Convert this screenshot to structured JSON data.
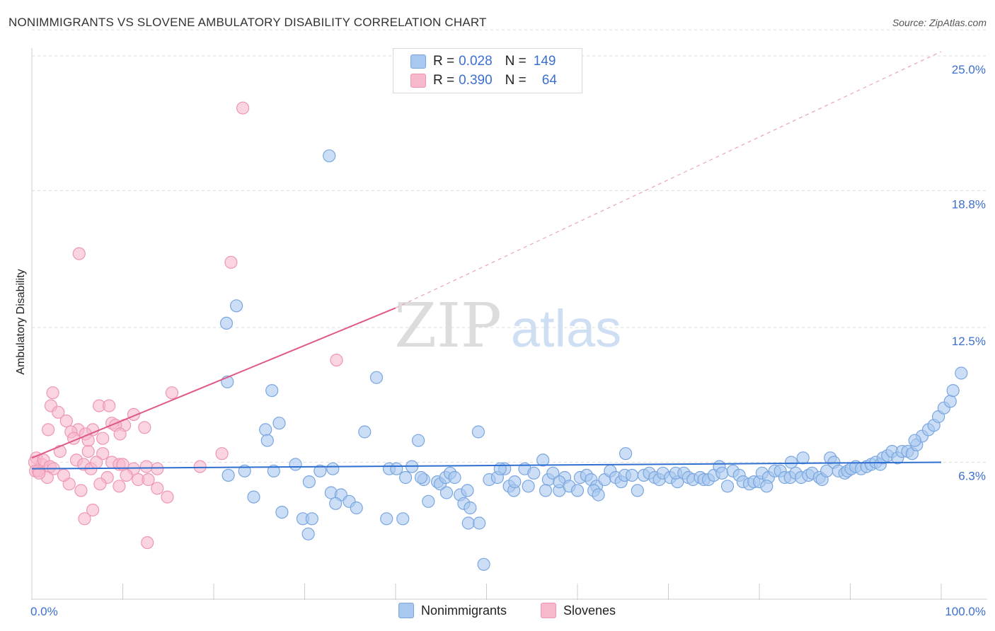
{
  "header": {
    "title": "NONIMMIGRANTS VS SLOVENE AMBULATORY DISABILITY CORRELATION CHART",
    "source": "Source: ZipAtlas.com"
  },
  "legend": {
    "rows": [
      {
        "r_label": "R =",
        "r_value": "0.028",
        "n_label": "N =",
        "n_value": "149"
      },
      {
        "r_label": "R =",
        "r_value": "0.390",
        "n_label": "N =",
        "n_value": "64"
      }
    ]
  },
  "colors": {
    "blue_fill": "#a9c8ef",
    "blue_stroke": "#7aa6e0",
    "blue_line": "#2f6fd0",
    "pink_fill": "#f6b8cb",
    "pink_stroke": "#ee97b2",
    "pink_line": "#e05a87",
    "tick_label": "#3c6fcf",
    "grid": "#dddddd"
  },
  "chart_data": {
    "type": "scatter",
    "title": "NONIMMIGRANTS VS SLOVENE AMBULATORY DISABILITY CORRELATION CHART",
    "ylabel": "Ambulatory Disability",
    "xlabel": "",
    "x_tick_labels": [
      "0.0%",
      "100.0%"
    ],
    "y_tick_labels": [
      "6.3%",
      "12.5%",
      "18.8%",
      "25.0%"
    ],
    "y_ticks": [
      6.3,
      12.5,
      18.8,
      25.0
    ],
    "xlim": [
      0,
      100
    ],
    "ylim": [
      0,
      26.2
    ],
    "grid": true,
    "legend_position": "top-center",
    "series": [
      {
        "name": "Nonimmigrants",
        "color": "#a9c8ef",
        "trend": {
          "x0": 0,
          "y0": 6.0,
          "x1": 100,
          "y1": 6.3
        },
        "points": [
          [
            32.7,
            20.4
          ],
          [
            22.5,
            13.5
          ],
          [
            21.4,
            12.7
          ],
          [
            21.5,
            10.0
          ],
          [
            26.4,
            9.6
          ],
          [
            37.9,
            10.2
          ],
          [
            25.7,
            7.8
          ],
          [
            25.9,
            7.3
          ],
          [
            27.2,
            8.1
          ],
          [
            36.6,
            7.7
          ],
          [
            42.5,
            7.3
          ],
          [
            49.1,
            7.7
          ],
          [
            26.6,
            5.9
          ],
          [
            29.0,
            6.2
          ],
          [
            30.5,
            5.4
          ],
          [
            31.7,
            5.9
          ],
          [
            33.1,
            6.0
          ],
          [
            32.9,
            4.9
          ],
          [
            34.0,
            4.8
          ],
          [
            33.4,
            4.4
          ],
          [
            34.9,
            4.5
          ],
          [
            35.7,
            4.2
          ],
          [
            27.5,
            4.0
          ],
          [
            29.8,
            3.7
          ],
          [
            30.8,
            3.7
          ],
          [
            30.4,
            3.0
          ],
          [
            39.3,
            6.0
          ],
          [
            40.1,
            6.0
          ],
          [
            41.1,
            5.6
          ],
          [
            41.8,
            6.1
          ],
          [
            43.1,
            5.5
          ],
          [
            42.8,
            5.6
          ],
          [
            43.6,
            4.5
          ],
          [
            44.6,
            5.4
          ],
          [
            44.9,
            5.3
          ],
          [
            45.6,
            4.9
          ],
          [
            45.5,
            5.6
          ],
          [
            46.0,
            5.8
          ],
          [
            46.5,
            5.6
          ],
          [
            47.1,
            4.8
          ],
          [
            47.5,
            4.4
          ],
          [
            48.0,
            3.5
          ],
          [
            49.2,
            3.5
          ],
          [
            47.9,
            5.0
          ],
          [
            48.2,
            4.2
          ],
          [
            39.0,
            3.7
          ],
          [
            40.8,
            3.7
          ],
          [
            52.0,
            6.0
          ],
          [
            50.3,
            5.5
          ],
          [
            51.2,
            5.6
          ],
          [
            51.5,
            6.0
          ],
          [
            52.5,
            5.2
          ],
          [
            53.0,
            5.0
          ],
          [
            53.1,
            5.4
          ],
          [
            54.6,
            5.2
          ],
          [
            54.2,
            6.0
          ],
          [
            55.2,
            5.8
          ],
          [
            56.2,
            6.4
          ],
          [
            56.8,
            5.5
          ],
          [
            57.3,
            5.8
          ],
          [
            56.5,
            5.0
          ],
          [
            58.0,
            5.0
          ],
          [
            58.6,
            5.6
          ],
          [
            58.0,
            5.4
          ],
          [
            59.1,
            5.2
          ],
          [
            60.0,
            5.0
          ],
          [
            60.3,
            5.6
          ],
          [
            61.0,
            5.7
          ],
          [
            61.5,
            5.5
          ],
          [
            62.1,
            5.2
          ],
          [
            61.8,
            5.0
          ],
          [
            62.3,
            4.8
          ],
          [
            63.0,
            5.5
          ],
          [
            63.6,
            5.9
          ],
          [
            64.2,
            5.6
          ],
          [
            64.8,
            5.4
          ],
          [
            65.2,
            5.7
          ],
          [
            65.3,
            6.7
          ],
          [
            66.0,
            5.7
          ],
          [
            66.6,
            5.0
          ],
          [
            67.3,
            5.7
          ],
          [
            67.9,
            5.8
          ],
          [
            68.5,
            5.6
          ],
          [
            69.0,
            5.5
          ],
          [
            69.4,
            5.8
          ],
          [
            70.2,
            5.6
          ],
          [
            71.0,
            5.4
          ],
          [
            70.8,
            5.8
          ],
          [
            71.7,
            5.8
          ],
          [
            72.2,
            5.6
          ],
          [
            72.7,
            5.5
          ],
          [
            73.5,
            5.6
          ],
          [
            73.9,
            5.5
          ],
          [
            74.4,
            5.5
          ],
          [
            75.0,
            5.7
          ],
          [
            75.6,
            6.1
          ],
          [
            75.9,
            5.8
          ],
          [
            76.5,
            5.2
          ],
          [
            77.1,
            5.9
          ],
          [
            77.8,
            5.7
          ],
          [
            78.2,
            5.4
          ],
          [
            78.9,
            5.3
          ],
          [
            79.4,
            5.4
          ],
          [
            80.0,
            5.4
          ],
          [
            80.3,
            5.8
          ],
          [
            81.0,
            5.6
          ],
          [
            80.8,
            5.2
          ],
          [
            81.7,
            5.9
          ],
          [
            82.3,
            5.9
          ],
          [
            82.8,
            5.6
          ],
          [
            83.4,
            5.6
          ],
          [
            83.5,
            6.3
          ],
          [
            84.0,
            5.8
          ],
          [
            84.6,
            5.6
          ],
          [
            84.8,
            6.5
          ],
          [
            85.4,
            5.7
          ],
          [
            85.8,
            5.8
          ],
          [
            86.6,
            5.6
          ],
          [
            86.9,
            5.5
          ],
          [
            87.4,
            5.9
          ],
          [
            87.8,
            6.5
          ],
          [
            88.2,
            6.3
          ],
          [
            88.7,
            5.9
          ],
          [
            89.4,
            5.8
          ],
          [
            89.7,
            5.9
          ],
          [
            90.1,
            6.0
          ],
          [
            90.6,
            6.1
          ],
          [
            91.2,
            6.0
          ],
          [
            91.8,
            6.1
          ],
          [
            92.3,
            6.2
          ],
          [
            92.8,
            6.3
          ],
          [
            93.3,
            6.2
          ],
          [
            93.6,
            6.5
          ],
          [
            94.1,
            6.6
          ],
          [
            94.6,
            6.8
          ],
          [
            95.2,
            6.5
          ],
          [
            95.7,
            6.8
          ],
          [
            96.3,
            6.8
          ],
          [
            96.8,
            6.7
          ],
          [
            97.3,
            7.1
          ],
          [
            97.9,
            7.5
          ],
          [
            97.1,
            7.3
          ],
          [
            98.6,
            7.8
          ],
          [
            99.2,
            8.0
          ],
          [
            99.7,
            8.4
          ],
          [
            100.3,
            8.8
          ],
          [
            101.0,
            9.1
          ],
          [
            101.3,
            9.6
          ],
          [
            102.2,
            10.4
          ],
          [
            21.6,
            5.7
          ],
          [
            23.4,
            5.9
          ],
          [
            24.4,
            4.7
          ],
          [
            49.7,
            1.6
          ]
        ]
      },
      {
        "name": "Slovenes",
        "color": "#f6b8cb",
        "trend": {
          "x0": 0,
          "y0": 6.5,
          "x1": 40,
          "y1": 13.4,
          "dashed_to": {
            "x": 100,
            "y": 25.2
          }
        },
        "points": [
          [
            23.2,
            22.6
          ],
          [
            5.2,
            15.9
          ],
          [
            21.9,
            15.5
          ],
          [
            33.5,
            11.0
          ],
          [
            15.4,
            9.5
          ],
          [
            2.3,
            9.5
          ],
          [
            2.1,
            8.9
          ],
          [
            7.4,
            8.9
          ],
          [
            8.5,
            8.9
          ],
          [
            2.9,
            8.6
          ],
          [
            11.2,
            8.5
          ],
          [
            3.8,
            8.2
          ],
          [
            8.8,
            8.1
          ],
          [
            5.1,
            7.8
          ],
          [
            1.8,
            7.8
          ],
          [
            6.7,
            7.8
          ],
          [
            5.9,
            7.6
          ],
          [
            10.2,
            8.0
          ],
          [
            12.4,
            7.9
          ],
          [
            9.2,
            8.0
          ],
          [
            4.3,
            7.7
          ],
          [
            4.6,
            7.4
          ],
          [
            6.2,
            7.3
          ],
          [
            7.8,
            7.4
          ],
          [
            9.7,
            7.6
          ],
          [
            6.2,
            6.8
          ],
          [
            3.1,
            6.8
          ],
          [
            7.8,
            6.7
          ],
          [
            0.5,
            6.5
          ],
          [
            1.1,
            6.2
          ],
          [
            0.3,
            6.3
          ],
          [
            0.4,
            5.9
          ],
          [
            0.7,
            5.9
          ],
          [
            1.3,
            6.4
          ],
          [
            2.0,
            6.1
          ],
          [
            2.4,
            6.0
          ],
          [
            4.9,
            6.4
          ],
          [
            5.7,
            6.2
          ],
          [
            6.5,
            6.0
          ],
          [
            7.1,
            6.3
          ],
          [
            8.8,
            6.3
          ],
          [
            9.6,
            6.2
          ],
          [
            10.0,
            6.2
          ],
          [
            11.2,
            6.0
          ],
          [
            12.6,
            6.1
          ],
          [
            13.8,
            6.0
          ],
          [
            18.5,
            6.1
          ],
          [
            20.9,
            6.7
          ],
          [
            10.4,
            5.7
          ],
          [
            8.3,
            5.6
          ],
          [
            7.5,
            5.3
          ],
          [
            11.7,
            5.5
          ],
          [
            12.8,
            5.5
          ],
          [
            13.8,
            5.1
          ],
          [
            14.9,
            4.7
          ],
          [
            4.1,
            5.3
          ],
          [
            3.5,
            5.7
          ],
          [
            5.4,
            5.0
          ],
          [
            6.7,
            4.1
          ],
          [
            5.8,
            3.7
          ],
          [
            9.6,
            5.2
          ],
          [
            12.7,
            2.6
          ],
          [
            1.7,
            5.6
          ],
          [
            0.8,
            5.8
          ]
        ]
      }
    ]
  },
  "bottom_legend": [
    "Nonimmigrants",
    "Slovenes"
  ],
  "watermark": {
    "part1": "ZIP",
    "part2": "atlas"
  }
}
